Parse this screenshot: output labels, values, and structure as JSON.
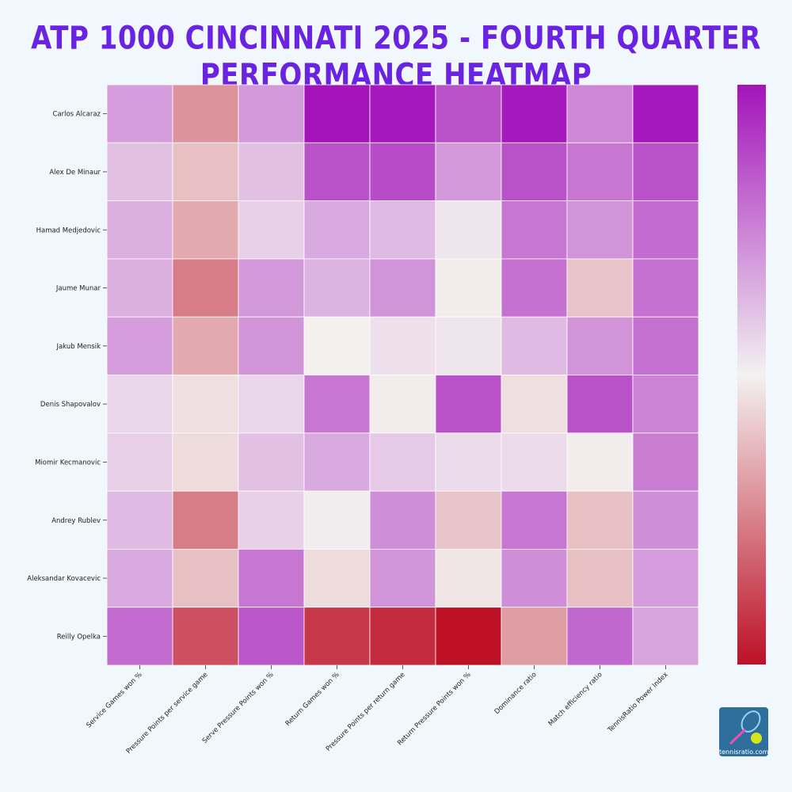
{
  "title": "ATP 1000 CINCINNATI 2025 - FOURTH QUARTER PERFORMANCE HEATMAP",
  "logo_text": "tennisratio.com",
  "chart_data": {
    "type": "heatmap",
    "rows": [
      "Carlos Alcaraz",
      "Alex De Minaur",
      "Hamad Medjedovic",
      "Jaume Munar",
      "Jakub Mensik",
      "Denis Shapovalov",
      "Miomir Kecmanovic",
      "Andrey Rublev",
      "Aleksandar Kovacevic",
      "Reilly Opelka"
    ],
    "columns": [
      "Service Games won %",
      "Pressure Points per service game",
      "Serve Pressure Points won %",
      "Return Games won %",
      "Pressure Points per return game",
      "Return Pressure Points won %",
      "Dominance ratio",
      "Match efficiency ratio",
      "TennisRatio Power Index"
    ],
    "values": [
      [
        0.38,
        -0.42,
        0.4,
        1.0,
        0.98,
        0.72,
        0.98,
        0.48,
        0.98
      ],
      [
        0.22,
        -0.22,
        0.22,
        0.72,
        0.75,
        0.4,
        0.72,
        0.55,
        0.72
      ],
      [
        0.3,
        -0.32,
        0.15,
        0.32,
        0.25,
        0.05,
        0.55,
        0.42,
        0.6
      ],
      [
        0.3,
        -0.52,
        0.4,
        0.28,
        0.42,
        -0.02,
        0.58,
        -0.2,
        0.58
      ],
      [
        0.38,
        -0.32,
        0.42,
        0.0,
        0.08,
        0.05,
        0.25,
        0.42,
        0.58
      ],
      [
        0.12,
        -0.08,
        0.12,
        0.55,
        -0.02,
        0.72,
        -0.08,
        0.72,
        0.5
      ],
      [
        0.15,
        -0.1,
        0.22,
        0.32,
        0.18,
        0.1,
        0.1,
        -0.02,
        0.52
      ],
      [
        0.25,
        -0.52,
        0.15,
        0.02,
        0.45,
        -0.2,
        0.55,
        -0.22,
        0.45
      ],
      [
        0.32,
        -0.22,
        0.55,
        -0.1,
        0.42,
        -0.05,
        0.45,
        -0.22,
        0.38
      ],
      [
        0.6,
        -0.72,
        0.7,
        -0.82,
        -0.88,
        -1.0,
        -0.38,
        0.62,
        0.35
      ]
    ],
    "colorscale": {
      "low": "#bd1126",
      "mid": "#f3f1f0",
      "high": "#a314ba"
    },
    "vmin": -1,
    "vmax": 1,
    "colorbar": true,
    "grid": false
  }
}
